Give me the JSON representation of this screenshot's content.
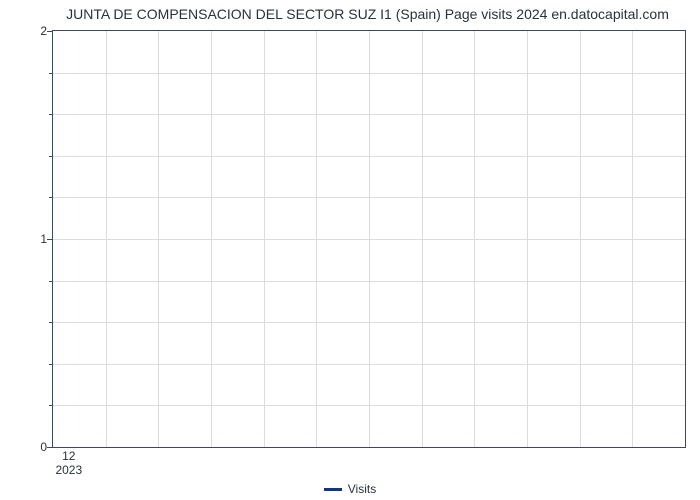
{
  "chart": {
    "type": "line",
    "title": "JUNTA DE COMPENSACION DEL SECTOR SUZ I1 (Spain) Page visits 2024 en.datocapital.com",
    "title_fontsize": 14,
    "title_color": "#28323c",
    "background_color": "#ffffff",
    "plot_border_color": "#3a4a5c",
    "grid_color": "#d9dde2",
    "grid_on": true,
    "y": {
      "lim": [
        0,
        2
      ],
      "major_ticks": [
        0,
        1,
        2
      ],
      "minor_tick_count_between": 4,
      "label_fontsize": 12
    },
    "x": {
      "tick_primary": "12",
      "tick_secondary": "2023",
      "tick_position_pct": 2.5,
      "grid_line_count": 12,
      "label_fontsize": 12
    },
    "series": [
      {
        "name": "Visits",
        "color": "#113388",
        "line_width": 3,
        "values": []
      }
    ],
    "legend": {
      "position": "bottom-center",
      "label": "Visits",
      "swatch_color": "#113388",
      "fontsize": 12
    }
  }
}
